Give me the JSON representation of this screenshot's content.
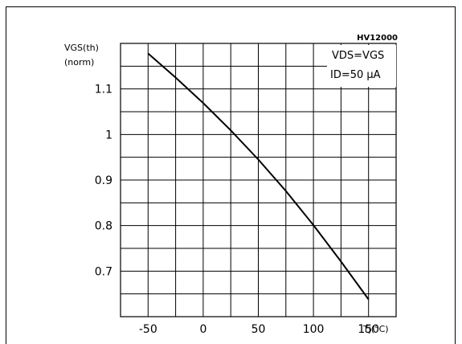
{
  "chart_data": {
    "type": "line",
    "code": "HV12000",
    "ylabel_line1": "VGS(th)",
    "ylabel_line2": "(norm)",
    "xlabel": "Tj(°C)",
    "condition_line1": "VDS=VGS",
    "condition_line2": "ID=50 μA",
    "xlim": [
      -75,
      175
    ],
    "ylim": [
      0.6,
      1.2
    ],
    "x_ticks": [
      -50,
      0,
      50,
      100,
      150
    ],
    "y_ticks": [
      0.7,
      0.8,
      0.9,
      1,
      1.1
    ],
    "x_tick_labels": [
      "-50",
      "0",
      "50",
      "100",
      "150"
    ],
    "y_tick_labels": [
      "0.7",
      "0.8",
      "0.9",
      "1",
      "1.1"
    ],
    "grid": true,
    "series": [
      {
        "x": [
          -50,
          -25,
          0,
          25,
          50,
          75,
          100,
          125,
          150
        ],
        "y": [
          1.178,
          1.125,
          1.069,
          1.009,
          0.945,
          0.876,
          0.801,
          0.721,
          0.638
        ]
      }
    ]
  }
}
